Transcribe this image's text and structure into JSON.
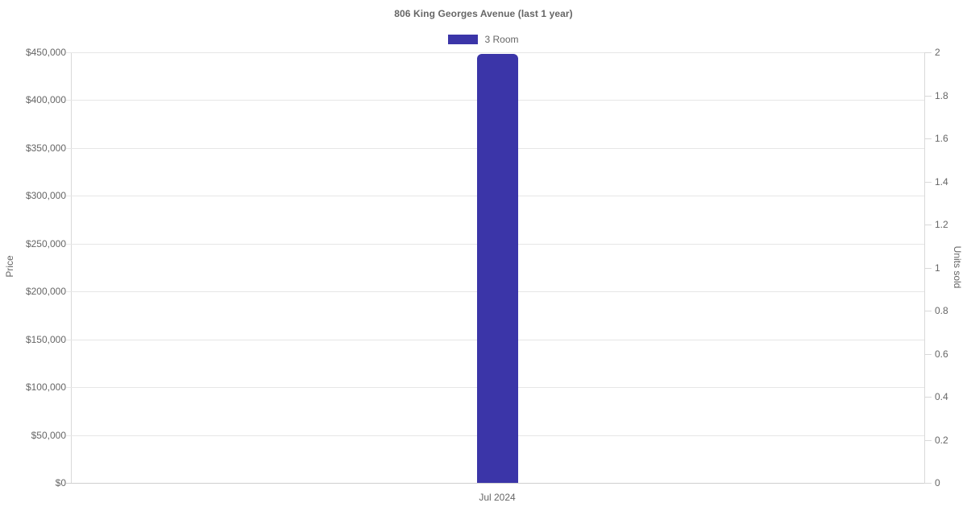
{
  "chart_data": {
    "type": "bar",
    "title": "806 King Georges Avenue (last 1 year)",
    "categories": [
      "Jul 2024"
    ],
    "series": [
      {
        "name": "3 Room",
        "axis": "left",
        "values": [
          448000
        ],
        "color": "#3b35a8"
      }
    ],
    "left_axis": {
      "label": "Price",
      "min": 0,
      "max": 450000,
      "tick_step": 50000,
      "ticks": [
        "$450,000",
        "$400,000",
        "$350,000",
        "$300,000",
        "$250,000",
        "$200,000",
        "$150,000",
        "$100,000",
        "$50,000",
        "$0"
      ]
    },
    "right_axis": {
      "label": "Units sold",
      "min": 0,
      "max": 2,
      "tick_step": 0.2,
      "ticks": [
        "2",
        "1.8",
        "1.6",
        "1.4",
        "1.2",
        "1",
        "0.8",
        "0.6",
        "0.4",
        "0.2",
        "0"
      ]
    },
    "grid": true,
    "legend_position": "top",
    "colors": {
      "bar": "#3b35a8",
      "text": "#666666",
      "gridline": "#e6e6e6",
      "axis_line": "#d9d9d9"
    }
  }
}
